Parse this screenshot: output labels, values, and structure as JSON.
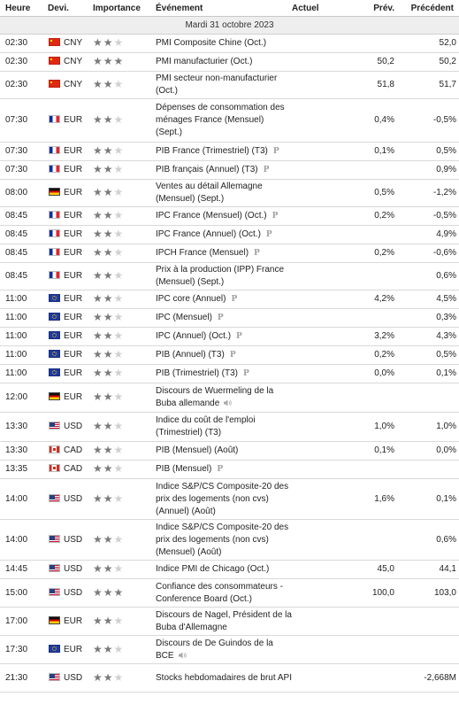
{
  "headers": {
    "time": "Heure",
    "currency": "Devi.",
    "importance": "Importance",
    "event": "Événement",
    "actual": "Actuel",
    "forecast": "Prév.",
    "previous": "Précédent"
  },
  "date_label": "Mardi 31 octobre 2023",
  "events": [
    {
      "time": "02:30",
      "flag": "cn",
      "currency": "CNY",
      "importance": 2,
      "name": "PMI Composite Chine (Oct.)",
      "prelim": false,
      "speech": false,
      "actual": "",
      "forecast": "",
      "previous": "52,0"
    },
    {
      "time": "02:30",
      "flag": "cn",
      "currency": "CNY",
      "importance": 3,
      "name": "PMI manufacturier (Oct.)",
      "prelim": false,
      "speech": false,
      "actual": "",
      "forecast": "50,2",
      "previous": "50,2"
    },
    {
      "time": "02:30",
      "flag": "cn",
      "currency": "CNY",
      "importance": 2,
      "name": "PMI secteur non-manufacturier (Oct.)",
      "prelim": false,
      "speech": false,
      "actual": "",
      "forecast": "51,8",
      "previous": "51,7"
    },
    {
      "time": "07:30",
      "flag": "fr",
      "currency": "EUR",
      "importance": 2,
      "name": "Dépenses de consommation des ménages France (Mensuel) (Sept.)",
      "prelim": false,
      "speech": false,
      "actual": "",
      "forecast": "0,4%",
      "previous": "-0,5%"
    },
    {
      "time": "07:30",
      "flag": "fr",
      "currency": "EUR",
      "importance": 2,
      "name": "PIB France (Trimestriel) (T3)",
      "prelim": true,
      "speech": false,
      "actual": "",
      "forecast": "0,1%",
      "previous": "0,5%"
    },
    {
      "time": "07:30",
      "flag": "fr",
      "currency": "EUR",
      "importance": 2,
      "name": "PIB français (Annuel) (T3)",
      "prelim": true,
      "speech": false,
      "actual": "",
      "forecast": "",
      "previous": "0,9%"
    },
    {
      "time": "08:00",
      "flag": "de",
      "currency": "EUR",
      "importance": 2,
      "name": "Ventes au détail Allemagne (Mensuel) (Sept.)",
      "prelim": false,
      "speech": false,
      "actual": "",
      "forecast": "0,5%",
      "previous": "-1,2%"
    },
    {
      "time": "08:45",
      "flag": "fr",
      "currency": "EUR",
      "importance": 2,
      "name": "IPC France (Mensuel) (Oct.)",
      "prelim": true,
      "speech": false,
      "actual": "",
      "forecast": "0,2%",
      "previous": "-0,5%"
    },
    {
      "time": "08:45",
      "flag": "fr",
      "currency": "EUR",
      "importance": 2,
      "name": "IPC France (Annuel) (Oct.)",
      "prelim": true,
      "speech": false,
      "actual": "",
      "forecast": "",
      "previous": "4,9%"
    },
    {
      "time": "08:45",
      "flag": "fr",
      "currency": "EUR",
      "importance": 2,
      "name": "IPCH France (Mensuel)",
      "prelim": true,
      "speech": false,
      "actual": "",
      "forecast": "0,2%",
      "previous": "-0,6%"
    },
    {
      "time": "08:45",
      "flag": "fr",
      "currency": "EUR",
      "importance": 2,
      "name": "Prix à la production (IPP) France (Mensuel) (Sept.)",
      "prelim": false,
      "speech": false,
      "actual": "",
      "forecast": "",
      "previous": "0,6%"
    },
    {
      "time": "11:00",
      "flag": "eu",
      "currency": "EUR",
      "importance": 2,
      "name": "IPC core (Annuel)",
      "prelim": true,
      "speech": false,
      "actual": "",
      "forecast": "4,2%",
      "previous": "4,5%"
    },
    {
      "time": "11:00",
      "flag": "eu",
      "currency": "EUR",
      "importance": 2,
      "name": "IPC (Mensuel)",
      "prelim": true,
      "speech": false,
      "actual": "",
      "forecast": "",
      "previous": "0,3%"
    },
    {
      "time": "11:00",
      "flag": "eu",
      "currency": "EUR",
      "importance": 2,
      "name": "IPC (Annuel) (Oct.)",
      "prelim": true,
      "speech": false,
      "actual": "",
      "forecast": "3,2%",
      "previous": "4,3%"
    },
    {
      "time": "11:00",
      "flag": "eu",
      "currency": "EUR",
      "importance": 2,
      "name": "PIB (Annuel) (T3)",
      "prelim": true,
      "speech": false,
      "actual": "",
      "forecast": "0,2%",
      "previous": "0,5%"
    },
    {
      "time": "11:00",
      "flag": "eu",
      "currency": "EUR",
      "importance": 2,
      "name": "PIB (Trimestriel) (T3)",
      "prelim": true,
      "speech": false,
      "actual": "",
      "forecast": "0,0%",
      "previous": "0,1%"
    },
    {
      "time": "12:00",
      "flag": "de",
      "currency": "EUR",
      "importance": 2,
      "name": "Discours de Wuermeling de la Buba allemande",
      "prelim": false,
      "speech": true,
      "actual": "",
      "forecast": "",
      "previous": ""
    },
    {
      "time": "13:30",
      "flag": "us",
      "currency": "USD",
      "importance": 2,
      "name": "Indice du coût de l'emploi (Trimestriel) (T3)",
      "prelim": false,
      "speech": false,
      "actual": "",
      "forecast": "1,0%",
      "previous": "1,0%"
    },
    {
      "time": "13:30",
      "flag": "ca",
      "currency": "CAD",
      "importance": 2,
      "name": "PIB (Mensuel) (Août)",
      "prelim": false,
      "speech": false,
      "actual": "",
      "forecast": "0,1%",
      "previous": "0,0%"
    },
    {
      "time": "13:35",
      "flag": "ca",
      "currency": "CAD",
      "importance": 2,
      "name": "PIB (Mensuel)",
      "prelim": true,
      "speech": false,
      "actual": "",
      "forecast": "",
      "previous": ""
    },
    {
      "time": "14:00",
      "flag": "us",
      "currency": "USD",
      "importance": 2,
      "name": "Indice S&P/CS Composite-20 des prix des logements (non cvs) (Annuel) (Août)",
      "prelim": false,
      "speech": false,
      "actual": "",
      "forecast": "1,6%",
      "previous": "0,1%"
    },
    {
      "time": "14:00",
      "flag": "us",
      "currency": "USD",
      "importance": 2,
      "name": "Indice S&P/CS Composite-20 des prix des logements (non cvs) (Mensuel) (Août)",
      "prelim": false,
      "speech": false,
      "actual": "",
      "forecast": "",
      "previous": "0,6%"
    },
    {
      "time": "14:45",
      "flag": "us",
      "currency": "USD",
      "importance": 2,
      "name": "Indice PMI de Chicago (Oct.)",
      "prelim": false,
      "speech": false,
      "actual": "",
      "forecast": "45,0",
      "previous": "44,1"
    },
    {
      "time": "15:00",
      "flag": "us",
      "currency": "USD",
      "importance": 3,
      "name": "Confiance des consommateurs - Conference Board (Oct.)",
      "prelim": false,
      "speech": false,
      "actual": "",
      "forecast": "100,0",
      "previous": "103,0"
    },
    {
      "time": "17:00",
      "flag": "de",
      "currency": "EUR",
      "importance": 2,
      "name": "Discours de Nagel, Président de la Buba d'Allemagne",
      "prelim": false,
      "speech": false,
      "actual": "",
      "forecast": "",
      "previous": ""
    },
    {
      "time": "17:30",
      "flag": "eu",
      "currency": "EUR",
      "importance": 2,
      "name": "Discours de De Guindos de la BCE",
      "prelim": false,
      "speech": true,
      "actual": "",
      "forecast": "",
      "previous": ""
    },
    {
      "time": "21:30",
      "flag": "us",
      "currency": "USD",
      "importance": 2,
      "name": "Stocks hebdomadaires de brut API",
      "prelim": false,
      "speech": false,
      "actual": "",
      "forecast": "",
      "previous": "-2,668M"
    }
  ],
  "row_heights": [
    21,
    21,
    31,
    49,
    21,
    21,
    31,
    21,
    21,
    21,
    31,
    21,
    21,
    21,
    21,
    21,
    33,
    33,
    21,
    21,
    46,
    46,
    21,
    32,
    32,
    32,
    32
  ],
  "prelim_symbol": "P",
  "star_glyph": "★",
  "speaker_icon": "speaker-icon"
}
